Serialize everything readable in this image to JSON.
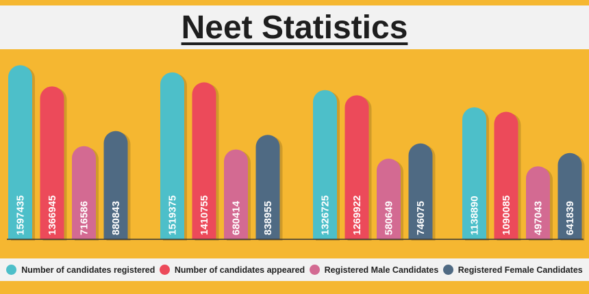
{
  "chart_data": {
    "type": "bar",
    "title": "Neet Statistics",
    "categories": [
      "",
      "",
      "",
      ""
    ],
    "series": [
      {
        "name": "Number of candidates registered",
        "color": "#4dbfc9",
        "values": [
          1597435,
          1519375,
          1326725,
          1138890
        ]
      },
      {
        "name": "Number of candidates appeared",
        "color": "#ec4a5a",
        "values": [
          1366945,
          1410755,
          1269922,
          1090085
        ]
      },
      {
        "name": "Registered Male Candidates",
        "color": "#d36a92",
        "values": [
          716586,
          680414,
          580649,
          497043
        ]
      },
      {
        "name": "Registered Female Candidates",
        "color": "#4f6a83",
        "values": [
          880843,
          838955,
          746075,
          641839
        ]
      }
    ],
    "data_labels": true,
    "legend": "bottom",
    "grid": false
  },
  "colors": {
    "background": "#f5b731",
    "title_bar": "#f2f2f2"
  }
}
